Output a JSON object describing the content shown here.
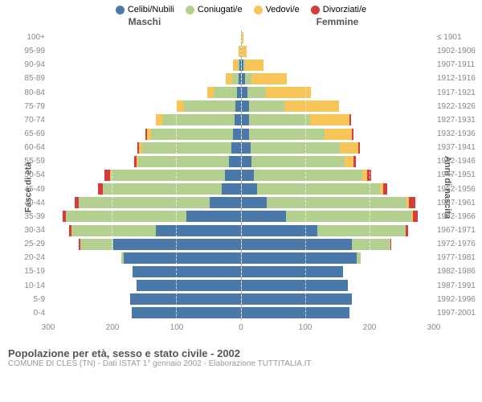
{
  "type": "population-pyramid",
  "legend": [
    {
      "label": "Celibi/Nubili",
      "color": "#4a78a9"
    },
    {
      "label": "Coniugati/e",
      "color": "#b4d090"
    },
    {
      "label": "Vedovi/e",
      "color": "#f7c558"
    },
    {
      "label": "Divorziati/e",
      "color": "#d73c3c"
    }
  ],
  "header_left": "Maschi",
  "header_right": "Femmine",
  "y_left_title": "Fasce di età",
  "y_right_title": "Anni di nascita",
  "x_max": 300,
  "x_ticks": [
    300,
    200,
    100,
    0,
    100,
    200,
    300
  ],
  "footer_title": "Popolazione per età, sesso e stato civile - 2002",
  "footer_sub": "COMUNE DI CLES (TN) - Dati ISTAT 1° gennaio 2002 - Elaborazione TUTTITALIA.IT",
  "background_color": "#ffffff",
  "grid_color": "#ffffff",
  "label_color": "#888888",
  "title_color": "#555555",
  "font_family": "Arial",
  "label_fontsize": 10,
  "bar_fill_ratio": 0.82,
  "rows": [
    {
      "age": "100+",
      "year": "≤ 1901",
      "m": [
        0,
        0,
        0,
        0
      ],
      "f": [
        0,
        0,
        3,
        0
      ]
    },
    {
      "age": "95-99",
      "year": "1902-1906",
      "m": [
        0,
        0,
        3,
        0
      ],
      "f": [
        0,
        0,
        8,
        0
      ]
    },
    {
      "age": "90-94",
      "year": "1907-1911",
      "m": [
        2,
        2,
        8,
        0
      ],
      "f": [
        3,
        3,
        28,
        0
      ]
    },
    {
      "age": "85-89",
      "year": "1912-1916",
      "m": [
        3,
        10,
        10,
        0
      ],
      "f": [
        6,
        10,
        55,
        0
      ]
    },
    {
      "age": "80-84",
      "year": "1917-1921",
      "m": [
        6,
        36,
        10,
        0
      ],
      "f": [
        10,
        28,
        70,
        0
      ]
    },
    {
      "age": "75-79",
      "year": "1922-1926",
      "m": [
        8,
        80,
        12,
        0
      ],
      "f": [
        12,
        55,
        85,
        0
      ]
    },
    {
      "age": "70-74",
      "year": "1927-1931",
      "m": [
        10,
        112,
        10,
        0
      ],
      "f": [
        12,
        95,
        62,
        2
      ]
    },
    {
      "age": "65-69",
      "year": "1932-1936",
      "m": [
        12,
        128,
        6,
        2
      ],
      "f": [
        12,
        118,
        42,
        3
      ]
    },
    {
      "age": "60-64",
      "year": "1937-1941",
      "m": [
        14,
        140,
        4,
        3
      ],
      "f": [
        14,
        140,
        28,
        3
      ]
    },
    {
      "age": "55-59",
      "year": "1942-1946",
      "m": [
        18,
        142,
        2,
        4
      ],
      "f": [
        16,
        145,
        14,
        4
      ]
    },
    {
      "age": "50-54",
      "year": "1947-1951",
      "m": [
        24,
        178,
        2,
        8
      ],
      "f": [
        20,
        168,
        8,
        6
      ]
    },
    {
      "age": "45-49",
      "year": "1952-1956",
      "m": [
        30,
        185,
        0,
        8
      ],
      "f": [
        24,
        192,
        5,
        6
      ]
    },
    {
      "age": "40-44",
      "year": "1957-1961",
      "m": [
        48,
        205,
        0,
        6
      ],
      "f": [
        40,
        218,
        3,
        10
      ]
    },
    {
      "age": "35-39",
      "year": "1962-1966",
      "m": [
        85,
        188,
        0,
        5
      ],
      "f": [
        70,
        195,
        2,
        8
      ]
    },
    {
      "age": "30-34",
      "year": "1967-1971",
      "m": [
        132,
        132,
        0,
        3
      ],
      "f": [
        118,
        138,
        0,
        4
      ]
    },
    {
      "age": "25-29",
      "year": "1972-1976",
      "m": [
        198,
        52,
        0,
        2
      ],
      "f": [
        172,
        60,
        0,
        2
      ]
    },
    {
      "age": "20-24",
      "year": "1977-1981",
      "m": [
        182,
        4,
        0,
        0
      ],
      "f": [
        180,
        6,
        0,
        0
      ]
    },
    {
      "age": "15-19",
      "year": "1982-1986",
      "m": [
        168,
        0,
        0,
        0
      ],
      "f": [
        158,
        0,
        0,
        0
      ]
    },
    {
      "age": "10-14",
      "year": "1987-1991",
      "m": [
        162,
        0,
        0,
        0
      ],
      "f": [
        166,
        0,
        0,
        0
      ]
    },
    {
      "age": "5-9",
      "year": "1992-1996",
      "m": [
        172,
        0,
        0,
        0
      ],
      "f": [
        172,
        0,
        0,
        0
      ]
    },
    {
      "age": "0-4",
      "year": "1997-2001",
      "m": [
        170,
        0,
        0,
        0
      ],
      "f": [
        168,
        0,
        0,
        0
      ]
    }
  ]
}
